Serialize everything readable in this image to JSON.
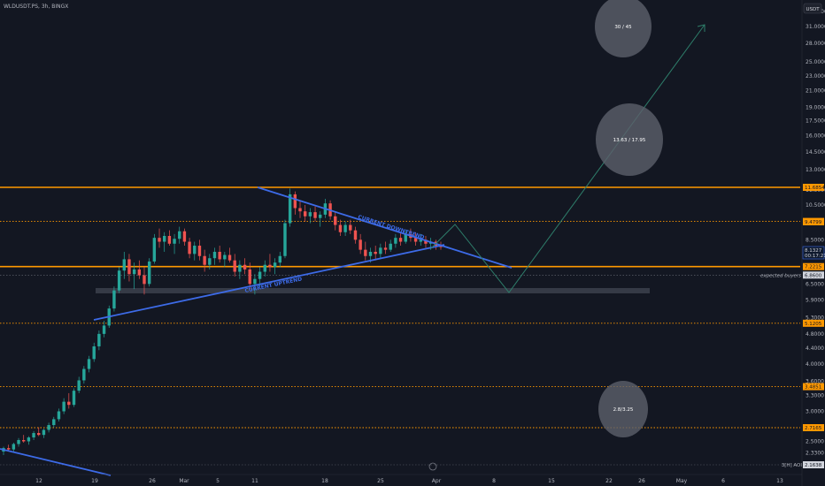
{
  "header": {
    "symbol_line": "WLDUSDT.PS, 3h, BINGX"
  },
  "currency_button": "USDT",
  "colors": {
    "background": "#131722",
    "axis_text": "#b2b5be",
    "orange": "#ff9800",
    "trend_blue": "#3d6be8",
    "up": "#26a69a",
    "down": "#ef5350",
    "projection": "#2e7d6a",
    "zone": "#3a3e4a",
    "ellipse": "#5d606b"
  },
  "chart_data": {
    "type": "candlestick",
    "y_scale": "log",
    "ylim": [
      2.25,
      37
    ],
    "x_tick_labels": [
      "12",
      "19",
      "26",
      "Mar",
      "5",
      "11",
      "18",
      "25",
      "Apr",
      "8",
      "15",
      "22",
      "26",
      "May",
      "6",
      "13"
    ],
    "y_tick_labels": [
      "34.0000",
      "31.0000",
      "28.0000",
      "25.0000",
      "23.0000",
      "21.0000",
      "19.0000",
      "17.5000",
      "16.0000",
      "14.5000",
      "13.0000",
      "11.5000",
      "10.5000",
      "8.5000",
      "6.5000",
      "5.9000",
      "5.3000",
      "4.8000",
      "4.4000",
      "4.0000",
      "3.6000",
      "3.3000",
      "3.0000",
      "2.5000",
      "2.3300"
    ],
    "price_levels": [
      {
        "price": 11.6854,
        "label": "11.6854",
        "style": "solid"
      },
      {
        "price": 9.5,
        "label": "9.5000",
        "style": "dotted"
      },
      {
        "price": 9.4799,
        "label": "9.4799",
        "style": "none"
      },
      {
        "price": 7.2215,
        "label": "7.2215",
        "style": "solid"
      },
      {
        "price": 5.1205,
        "label": "5.1205",
        "style": "dotted"
      },
      {
        "price": 3.4851,
        "label": "3.4851",
        "style": "dotted"
      },
      {
        "price": 2.7165,
        "label": "2.7165",
        "style": "dotted"
      }
    ],
    "current_price": {
      "value": "8.1327",
      "countdown": "00:17:21"
    },
    "expected_buyers": {
      "price": 6.86,
      "box_label": "6.8600",
      "text": "expected buyers"
    },
    "bottom_line": {
      "text": "3[H] AOI",
      "value": "2.1638"
    },
    "annotations": {
      "downtrend": "CURRENT DOWNTREND",
      "uptrend": "CURRENT UPTREND",
      "target_top": "30 / 45",
      "target_mid": "13.63 / 17.95",
      "target_low": "2.8/3.25"
    },
    "candles": [
      [
        2.35,
        2.42,
        2.3,
        2.4
      ],
      [
        2.4,
        2.45,
        2.36,
        2.38
      ],
      [
        2.38,
        2.48,
        2.35,
        2.46
      ],
      [
        2.46,
        2.55,
        2.42,
        2.52
      ],
      [
        2.52,
        2.6,
        2.48,
        2.5
      ],
      [
        2.5,
        2.58,
        2.45,
        2.56
      ],
      [
        2.56,
        2.66,
        2.52,
        2.63
      ],
      [
        2.63,
        2.72,
        2.58,
        2.6
      ],
      [
        2.6,
        2.7,
        2.55,
        2.68
      ],
      [
        2.68,
        2.8,
        2.64,
        2.76
      ],
      [
        2.76,
        2.9,
        2.72,
        2.86
      ],
      [
        2.86,
        3.05,
        2.82,
        3.0
      ],
      [
        3.0,
        3.25,
        2.95,
        3.18
      ],
      [
        3.18,
        3.35,
        3.05,
        3.12
      ],
      [
        3.12,
        3.45,
        3.08,
        3.4
      ],
      [
        3.4,
        3.7,
        3.35,
        3.62
      ],
      [
        3.62,
        3.95,
        3.55,
        3.88
      ],
      [
        3.88,
        4.2,
        3.8,
        4.12
      ],
      [
        4.12,
        4.55,
        4.05,
        4.45
      ],
      [
        4.45,
        4.9,
        4.35,
        4.8
      ],
      [
        4.8,
        5.2,
        4.7,
        5.05
      ],
      [
        5.05,
        5.7,
        4.98,
        5.6
      ],
      [
        5.6,
        6.4,
        5.5,
        6.25
      ],
      [
        6.25,
        7.2,
        6.15,
        7.05
      ],
      [
        7.05,
        7.9,
        6.7,
        7.55
      ],
      [
        7.55,
        7.8,
        6.6,
        6.9
      ],
      [
        6.9,
        7.4,
        6.3,
        7.1
      ],
      [
        7.1,
        7.5,
        6.7,
        6.85
      ],
      [
        6.85,
        7.2,
        6.1,
        6.5
      ],
      [
        6.5,
        7.6,
        6.4,
        7.45
      ],
      [
        7.45,
        8.8,
        7.35,
        8.6
      ],
      [
        8.6,
        9.1,
        8.1,
        8.4
      ],
      [
        8.4,
        8.9,
        7.9,
        8.7
      ],
      [
        8.7,
        9.0,
        8.2,
        8.3
      ],
      [
        8.3,
        8.8,
        7.8,
        8.55
      ],
      [
        8.55,
        9.2,
        8.3,
        8.95
      ],
      [
        8.95,
        9.1,
        8.2,
        8.4
      ],
      [
        8.4,
        8.6,
        7.6,
        7.8
      ],
      [
        7.8,
        8.4,
        7.5,
        8.2
      ],
      [
        8.2,
        8.5,
        7.5,
        7.7
      ],
      [
        7.7,
        8.0,
        7.0,
        7.3
      ],
      [
        7.3,
        7.8,
        7.1,
        7.6
      ],
      [
        7.6,
        8.1,
        7.3,
        7.9
      ],
      [
        7.9,
        8.2,
        7.4,
        7.55
      ],
      [
        7.55,
        7.9,
        7.2,
        7.75
      ],
      [
        7.75,
        8.1,
        7.4,
        7.5
      ],
      [
        7.5,
        7.8,
        6.8,
        7.0
      ],
      [
        7.0,
        7.5,
        6.7,
        7.3
      ],
      [
        7.3,
        7.6,
        6.9,
        7.1
      ],
      [
        7.1,
        7.4,
        6.3,
        6.5
      ],
      [
        6.5,
        6.9,
        6.1,
        6.7
      ],
      [
        6.7,
        7.2,
        6.4,
        7.0
      ],
      [
        7.0,
        7.5,
        6.8,
        7.3
      ],
      [
        7.3,
        7.8,
        7.0,
        7.2
      ],
      [
        7.2,
        7.6,
        6.9,
        7.4
      ],
      [
        7.4,
        7.9,
        7.2,
        7.7
      ],
      [
        7.7,
        9.6,
        7.6,
        9.4
      ],
      [
        9.4,
        11.6,
        9.2,
        11.2
      ],
      [
        11.2,
        11.4,
        9.9,
        10.3
      ],
      [
        10.3,
        10.8,
        9.7,
        10.1
      ],
      [
        10.1,
        10.5,
        9.5,
        9.8
      ],
      [
        9.8,
        10.3,
        9.4,
        10.05
      ],
      [
        10.05,
        10.4,
        9.5,
        9.7
      ],
      [
        9.7,
        10.1,
        9.2,
        9.9
      ],
      [
        9.9,
        10.9,
        9.7,
        10.6
      ],
      [
        10.6,
        10.8,
        9.6,
        9.8
      ],
      [
        9.8,
        10.1,
        9.0,
        9.3
      ],
      [
        9.3,
        9.6,
        8.7,
        8.9
      ],
      [
        8.9,
        9.5,
        8.7,
        9.3
      ],
      [
        9.3,
        9.6,
        8.8,
        9.0
      ],
      [
        9.0,
        9.2,
        8.3,
        8.5
      ],
      [
        8.5,
        8.8,
        7.8,
        8.0
      ],
      [
        8.0,
        8.4,
        7.5,
        7.7
      ],
      [
        7.7,
        8.1,
        7.4,
        7.9
      ],
      [
        7.9,
        8.2,
        7.5,
        7.8
      ],
      [
        7.8,
        8.3,
        7.6,
        8.1
      ],
      [
        8.1,
        8.4,
        7.8,
        8.0
      ],
      [
        8.0,
        8.5,
        7.9,
        8.3
      ],
      [
        8.3,
        8.8,
        8.1,
        8.6
      ],
      [
        8.6,
        8.9,
        8.2,
        8.4
      ],
      [
        8.4,
        9.0,
        8.3,
        8.8
      ],
      [
        8.8,
        9.1,
        8.4,
        8.6
      ],
      [
        8.6,
        8.9,
        8.2,
        8.4
      ],
      [
        8.4,
        8.8,
        8.2,
        8.5
      ],
      [
        8.5,
        8.7,
        8.1,
        8.3
      ],
      [
        8.3,
        8.6,
        8.0,
        8.4
      ],
      [
        8.4,
        8.5,
        8.0,
        8.2
      ],
      [
        8.2,
        8.4,
        8.0,
        8.13
      ]
    ]
  }
}
